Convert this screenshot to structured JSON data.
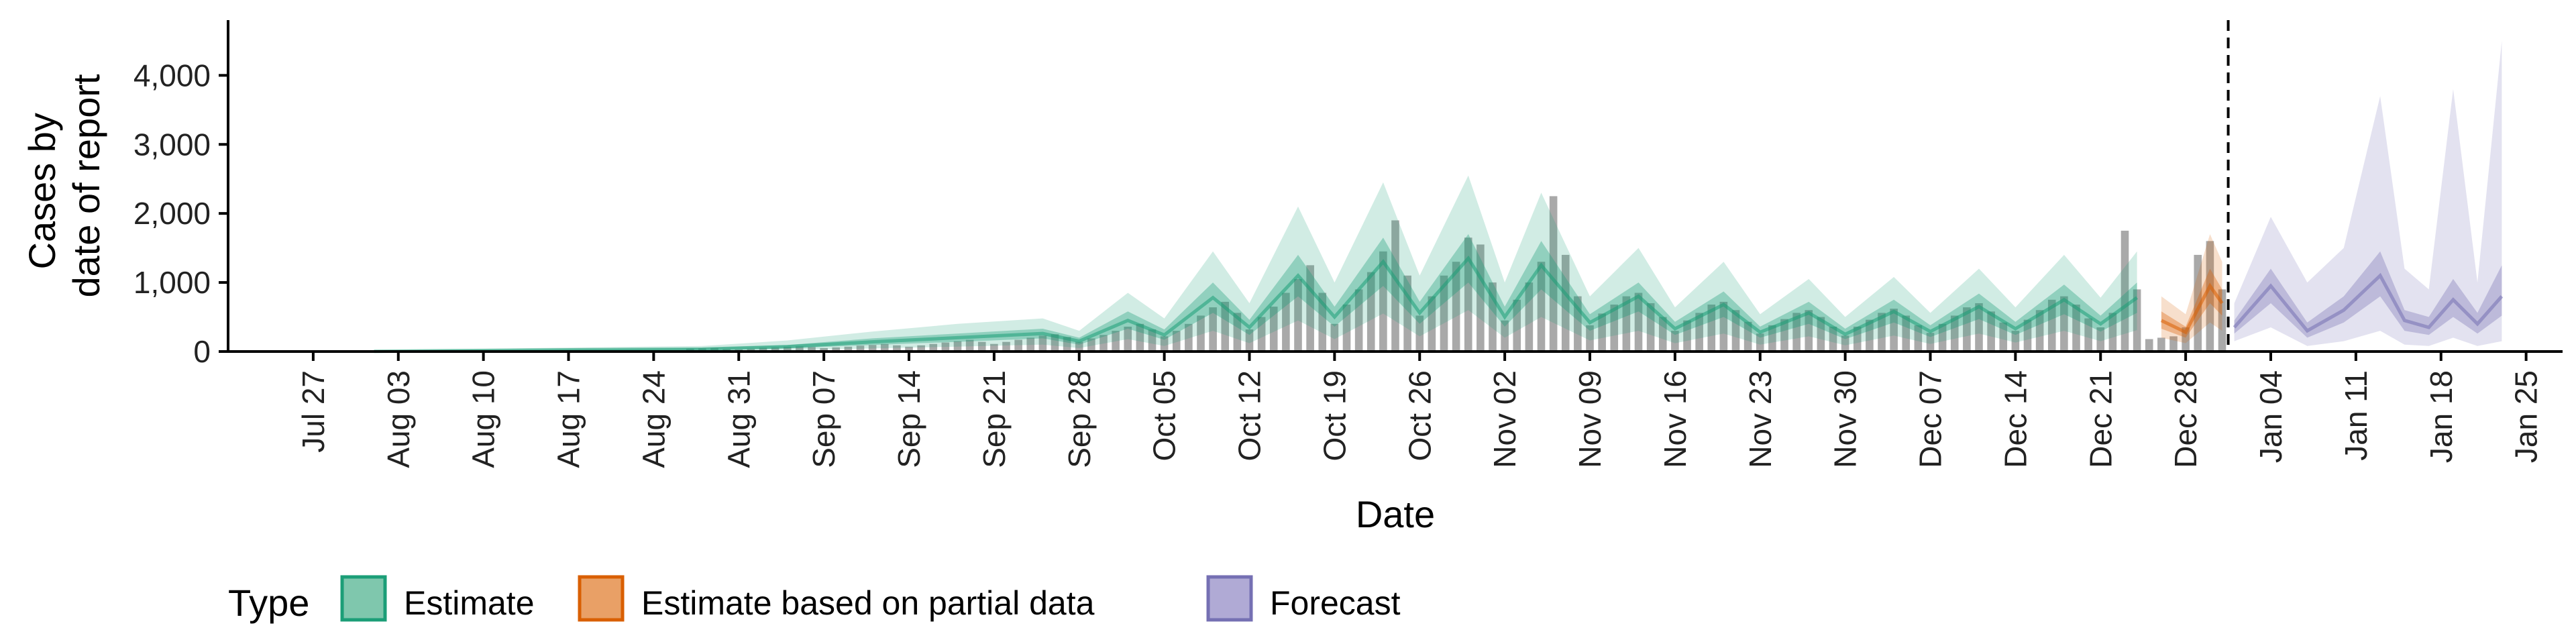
{
  "chart_data": {
    "type": "area",
    "xlabel": "Date",
    "ylabel_lines": [
      "Cases by",
      "date of report"
    ],
    "ylim": [
      0,
      4800
    ],
    "y_ticks": [
      0,
      1000,
      2000,
      3000,
      4000
    ],
    "y_tick_labels": [
      "0",
      "1,000",
      "2,000",
      "3,000",
      "4,000"
    ],
    "x_range": [
      "2020-07-20",
      "2021-01-28"
    ],
    "x_ticks": [
      "2020-07-27",
      "2020-08-03",
      "2020-08-10",
      "2020-08-17",
      "2020-08-24",
      "2020-08-31",
      "2020-09-07",
      "2020-09-14",
      "2020-09-21",
      "2020-09-28",
      "2020-10-05",
      "2020-10-12",
      "2020-10-19",
      "2020-10-26",
      "2020-11-02",
      "2020-11-09",
      "2020-11-16",
      "2020-11-23",
      "2020-11-30",
      "2020-12-07",
      "2020-12-14",
      "2020-12-21",
      "2020-12-28",
      "2021-01-04",
      "2021-01-11",
      "2021-01-18",
      "2021-01-25"
    ],
    "x_tick_labels": [
      "Jul 27",
      "Aug 03",
      "Aug 10",
      "Aug 17",
      "Aug 24",
      "Aug 31",
      "Sep 07",
      "Sep 14",
      "Sep 21",
      "Sep 28",
      "Oct 05",
      "Oct 12",
      "Oct 19",
      "Oct 26",
      "Nov 02",
      "Nov 09",
      "Nov 16",
      "Nov 23",
      "Nov 30",
      "Dec 07",
      "Dec 14",
      "Dec 21",
      "Dec 28",
      "Jan 04",
      "Jan 11",
      "Jan 18",
      "Jan 25"
    ],
    "forecast_start": "2021-01-01",
    "legend": {
      "title": "Type",
      "position": "bottom",
      "items": [
        {
          "label": "Estimate",
          "fill": "#7fc7ad",
          "stroke": "#1b9e77"
        },
        {
          "label": "Estimate based on partial data",
          "fill": "#e9a066",
          "stroke": "#d95f02"
        },
        {
          "label": "Forecast",
          "fill": "#b0aad5",
          "stroke": "#7570b3"
        }
      ]
    },
    "colors": {
      "Estimate": "#1b9e77",
      "Estimate based on partial data": "#d95f02",
      "Forecast": "#7570b3",
      "bars": "#a9a9a9"
    },
    "anchors": {
      "estimate": [
        [
          "2020-08-01",
          3,
          2,
          5,
          0,
          12
        ],
        [
          "2020-08-07",
          12,
          8,
          16,
          4,
          30
        ],
        [
          "2020-08-14",
          20,
          12,
          28,
          6,
          50
        ],
        [
          "2020-08-21",
          28,
          18,
          40,
          8,
          65
        ],
        [
          "2020-08-28",
          35,
          22,
          50,
          10,
          80
        ],
        [
          "2020-09-04",
          70,
          45,
          95,
          20,
          160
        ],
        [
          "2020-09-11",
          140,
          95,
          190,
          45,
          290
        ],
        [
          "2020-09-18",
          200,
          140,
          260,
          70,
          400
        ],
        [
          "2020-09-25",
          260,
          190,
          330,
          100,
          480
        ],
        [
          "2020-09-28",
          150,
          100,
          200,
          50,
          300
        ],
        [
          "2020-10-02",
          450,
          330,
          580,
          180,
          850
        ],
        [
          "2020-10-05",
          240,
          170,
          320,
          80,
          480
        ],
        [
          "2020-10-09",
          780,
          560,
          1000,
          300,
          1450
        ],
        [
          "2020-10-12",
          350,
          240,
          460,
          120,
          700
        ],
        [
          "2020-10-16",
          1100,
          800,
          1400,
          450,
          2100
        ],
        [
          "2020-10-19",
          500,
          360,
          650,
          180,
          1000
        ],
        [
          "2020-10-23",
          1300,
          950,
          1650,
          550,
          2450
        ],
        [
          "2020-10-26",
          560,
          400,
          720,
          220,
          1100
        ],
        [
          "2020-10-30",
          1350,
          1000,
          1700,
          600,
          2550
        ],
        [
          "2020-11-02",
          500,
          360,
          650,
          200,
          1000
        ],
        [
          "2020-11-05",
          1250,
          900,
          1600,
          500,
          2300
        ],
        [
          "2020-11-09",
          420,
          300,
          540,
          160,
          800
        ],
        [
          "2020-11-13",
          800,
          580,
          1000,
          300,
          1500
        ],
        [
          "2020-11-16",
          330,
          240,
          430,
          120,
          640
        ],
        [
          "2020-11-20",
          680,
          500,
          870,
          260,
          1300
        ],
        [
          "2020-11-23",
          280,
          200,
          360,
          100,
          540
        ],
        [
          "2020-11-27",
          560,
          400,
          720,
          220,
          1050
        ],
        [
          "2020-11-30",
          250,
          180,
          330,
          90,
          500
        ],
        [
          "2020-12-04",
          580,
          420,
          750,
          230,
          1080
        ],
        [
          "2020-12-07",
          290,
          210,
          380,
          110,
          560
        ],
        [
          "2020-12-11",
          650,
          470,
          840,
          260,
          1200
        ],
        [
          "2020-12-14",
          330,
          240,
          430,
          130,
          640
        ],
        [
          "2020-12-18",
          750,
          540,
          970,
          300,
          1400
        ],
        [
          "2020-12-21",
          400,
          290,
          520,
          150,
          780
        ],
        [
          "2020-12-24",
          780,
          560,
          1000,
          310,
          1450
        ]
      ],
      "partial": [
        [
          "2020-12-26",
          450,
          330,
          580,
          200,
          800
        ],
        [
          "2020-12-28",
          280,
          200,
          360,
          120,
          540
        ],
        [
          "2020-12-30",
          950,
          700,
          1200,
          420,
          1700
        ],
        [
          "2020-12-31",
          700,
          520,
          900,
          300,
          1300
        ]
      ],
      "forecast": [
        [
          "2021-01-01",
          350,
          260,
          450,
          150,
          700
        ],
        [
          "2021-01-04",
          950,
          700,
          1200,
          350,
          1950
        ],
        [
          "2021-01-07",
          300,
          200,
          420,
          80,
          1000
        ],
        [
          "2021-01-10",
          600,
          420,
          800,
          150,
          1500
        ],
        [
          "2021-01-13",
          1100,
          800,
          1450,
          300,
          3700
        ],
        [
          "2021-01-15",
          450,
          300,
          600,
          100,
          1200
        ],
        [
          "2021-01-17",
          350,
          240,
          500,
          80,
          900
        ],
        [
          "2021-01-19",
          750,
          500,
          1050,
          200,
          3800
        ],
        [
          "2021-01-21",
          400,
          260,
          560,
          80,
          1000
        ],
        [
          "2021-01-23",
          800,
          520,
          1250,
          150,
          4500
        ]
      ]
    },
    "bars": [
      [
        "2020-08-27",
        40
      ],
      [
        "2020-08-28",
        45
      ],
      [
        "2020-08-29",
        50
      ],
      [
        "2020-08-30",
        35
      ],
      [
        "2020-08-31",
        30
      ],
      [
        "2020-09-01",
        40
      ],
      [
        "2020-09-02",
        55
      ],
      [
        "2020-09-03",
        60
      ],
      [
        "2020-09-04",
        70
      ],
      [
        "2020-09-05",
        75
      ],
      [
        "2020-09-06",
        65
      ],
      [
        "2020-09-07",
        50
      ],
      [
        "2020-09-08",
        60
      ],
      [
        "2020-09-09",
        70
      ],
      [
        "2020-09-10",
        85
      ],
      [
        "2020-09-11",
        95
      ],
      [
        "2020-09-12",
        110
      ],
      [
        "2020-09-13",
        90
      ],
      [
        "2020-09-14",
        70
      ],
      [
        "2020-09-15",
        90
      ],
      [
        "2020-09-16",
        110
      ],
      [
        "2020-09-17",
        130
      ],
      [
        "2020-09-18",
        150
      ],
      [
        "2020-09-19",
        170
      ],
      [
        "2020-09-20",
        140
      ],
      [
        "2020-09-21",
        110
      ],
      [
        "2020-09-22",
        140
      ],
      [
        "2020-09-23",
        170
      ],
      [
        "2020-09-24",
        200
      ],
      [
        "2020-09-25",
        230
      ],
      [
        "2020-09-26",
        250
      ],
      [
        "2020-09-27",
        210
      ],
      [
        "2020-09-28",
        140
      ],
      [
        "2020-09-29",
        190
      ],
      [
        "2020-09-30",
        240
      ],
      [
        "2020-10-01",
        300
      ],
      [
        "2020-10-02",
        360
      ],
      [
        "2020-10-03",
        400
      ],
      [
        "2020-10-04",
        320
      ],
      [
        "2020-10-05",
        220
      ],
      [
        "2020-10-06",
        300
      ],
      [
        "2020-10-07",
        400
      ],
      [
        "2020-10-08",
        520
      ],
      [
        "2020-10-09",
        640
      ],
      [
        "2020-10-10",
        720
      ],
      [
        "2020-10-11",
        560
      ],
      [
        "2020-10-12",
        320
      ],
      [
        "2020-10-13",
        500
      ],
      [
        "2020-10-14",
        650
      ],
      [
        "2020-10-15",
        850
      ],
      [
        "2020-10-16",
        1050
      ],
      [
        "2020-10-17",
        1250
      ],
      [
        "2020-10-18",
        850
      ],
      [
        "2020-10-19",
        400
      ],
      [
        "2020-10-20",
        680
      ],
      [
        "2020-10-21",
        900
      ],
      [
        "2020-10-22",
        1150
      ],
      [
        "2020-10-23",
        1450
      ],
      [
        "2020-10-24",
        1900
      ],
      [
        "2020-10-25",
        1100
      ],
      [
        "2020-10-26",
        520
      ],
      [
        "2020-10-27",
        800
      ],
      [
        "2020-10-28",
        1100
      ],
      [
        "2020-10-29",
        1300
      ],
      [
        "2020-10-30",
        1650
      ],
      [
        "2020-10-31",
        1550
      ],
      [
        "2020-11-01",
        1000
      ],
      [
        "2020-11-02",
        450
      ],
      [
        "2020-11-03",
        750
      ],
      [
        "2020-11-04",
        1000
      ],
      [
        "2020-11-05",
        1300
      ],
      [
        "2020-11-06",
        2250
      ],
      [
        "2020-11-07",
        1400
      ],
      [
        "2020-11-08",
        800
      ],
      [
        "2020-11-09",
        380
      ],
      [
        "2020-11-10",
        550
      ],
      [
        "2020-11-11",
        680
      ],
      [
        "2020-11-12",
        800
      ],
      [
        "2020-11-13",
        850
      ],
      [
        "2020-11-14",
        700
      ],
      [
        "2020-11-15",
        500
      ],
      [
        "2020-11-16",
        300
      ],
      [
        "2020-11-17",
        450
      ],
      [
        "2020-11-18",
        560
      ],
      [
        "2020-11-19",
        680
      ],
      [
        "2020-11-20",
        720
      ],
      [
        "2020-11-21",
        600
      ],
      [
        "2020-11-22",
        430
      ],
      [
        "2020-11-23",
        260
      ],
      [
        "2020-11-24",
        380
      ],
      [
        "2020-11-25",
        470
      ],
      [
        "2020-11-26",
        560
      ],
      [
        "2020-11-27",
        600
      ],
      [
        "2020-11-28",
        500
      ],
      [
        "2020-11-29",
        360
      ],
      [
        "2020-11-30",
        230
      ],
      [
        "2020-12-01",
        360
      ],
      [
        "2020-12-02",
        460
      ],
      [
        "2020-12-03",
        560
      ],
      [
        "2020-12-04",
        620
      ],
      [
        "2020-12-05",
        520
      ],
      [
        "2020-12-06",
        380
      ],
      [
        "2020-12-07",
        270
      ],
      [
        "2020-12-08",
        400
      ],
      [
        "2020-12-09",
        520
      ],
      [
        "2020-12-10",
        640
      ],
      [
        "2020-12-11",
        700
      ],
      [
        "2020-12-12",
        580
      ],
      [
        "2020-12-13",
        420
      ],
      [
        "2020-12-14",
        300
      ],
      [
        "2020-12-15",
        460
      ],
      [
        "2020-12-16",
        600
      ],
      [
        "2020-12-17",
        750
      ],
      [
        "2020-12-18",
        800
      ],
      [
        "2020-12-19",
        680
      ],
      [
        "2020-12-20",
        480
      ],
      [
        "2020-12-21",
        350
      ],
      [
        "2020-12-22",
        560
      ],
      [
        "2020-12-23",
        1750
      ],
      [
        "2020-12-24",
        900
      ],
      [
        "2020-12-25",
        180
      ],
      [
        "2020-12-26",
        200
      ],
      [
        "2020-12-27",
        220
      ],
      [
        "2020-12-28",
        350
      ],
      [
        "2020-12-29",
        1400
      ],
      [
        "2020-12-30",
        1600
      ],
      [
        "2020-12-31",
        900
      ]
    ]
  }
}
